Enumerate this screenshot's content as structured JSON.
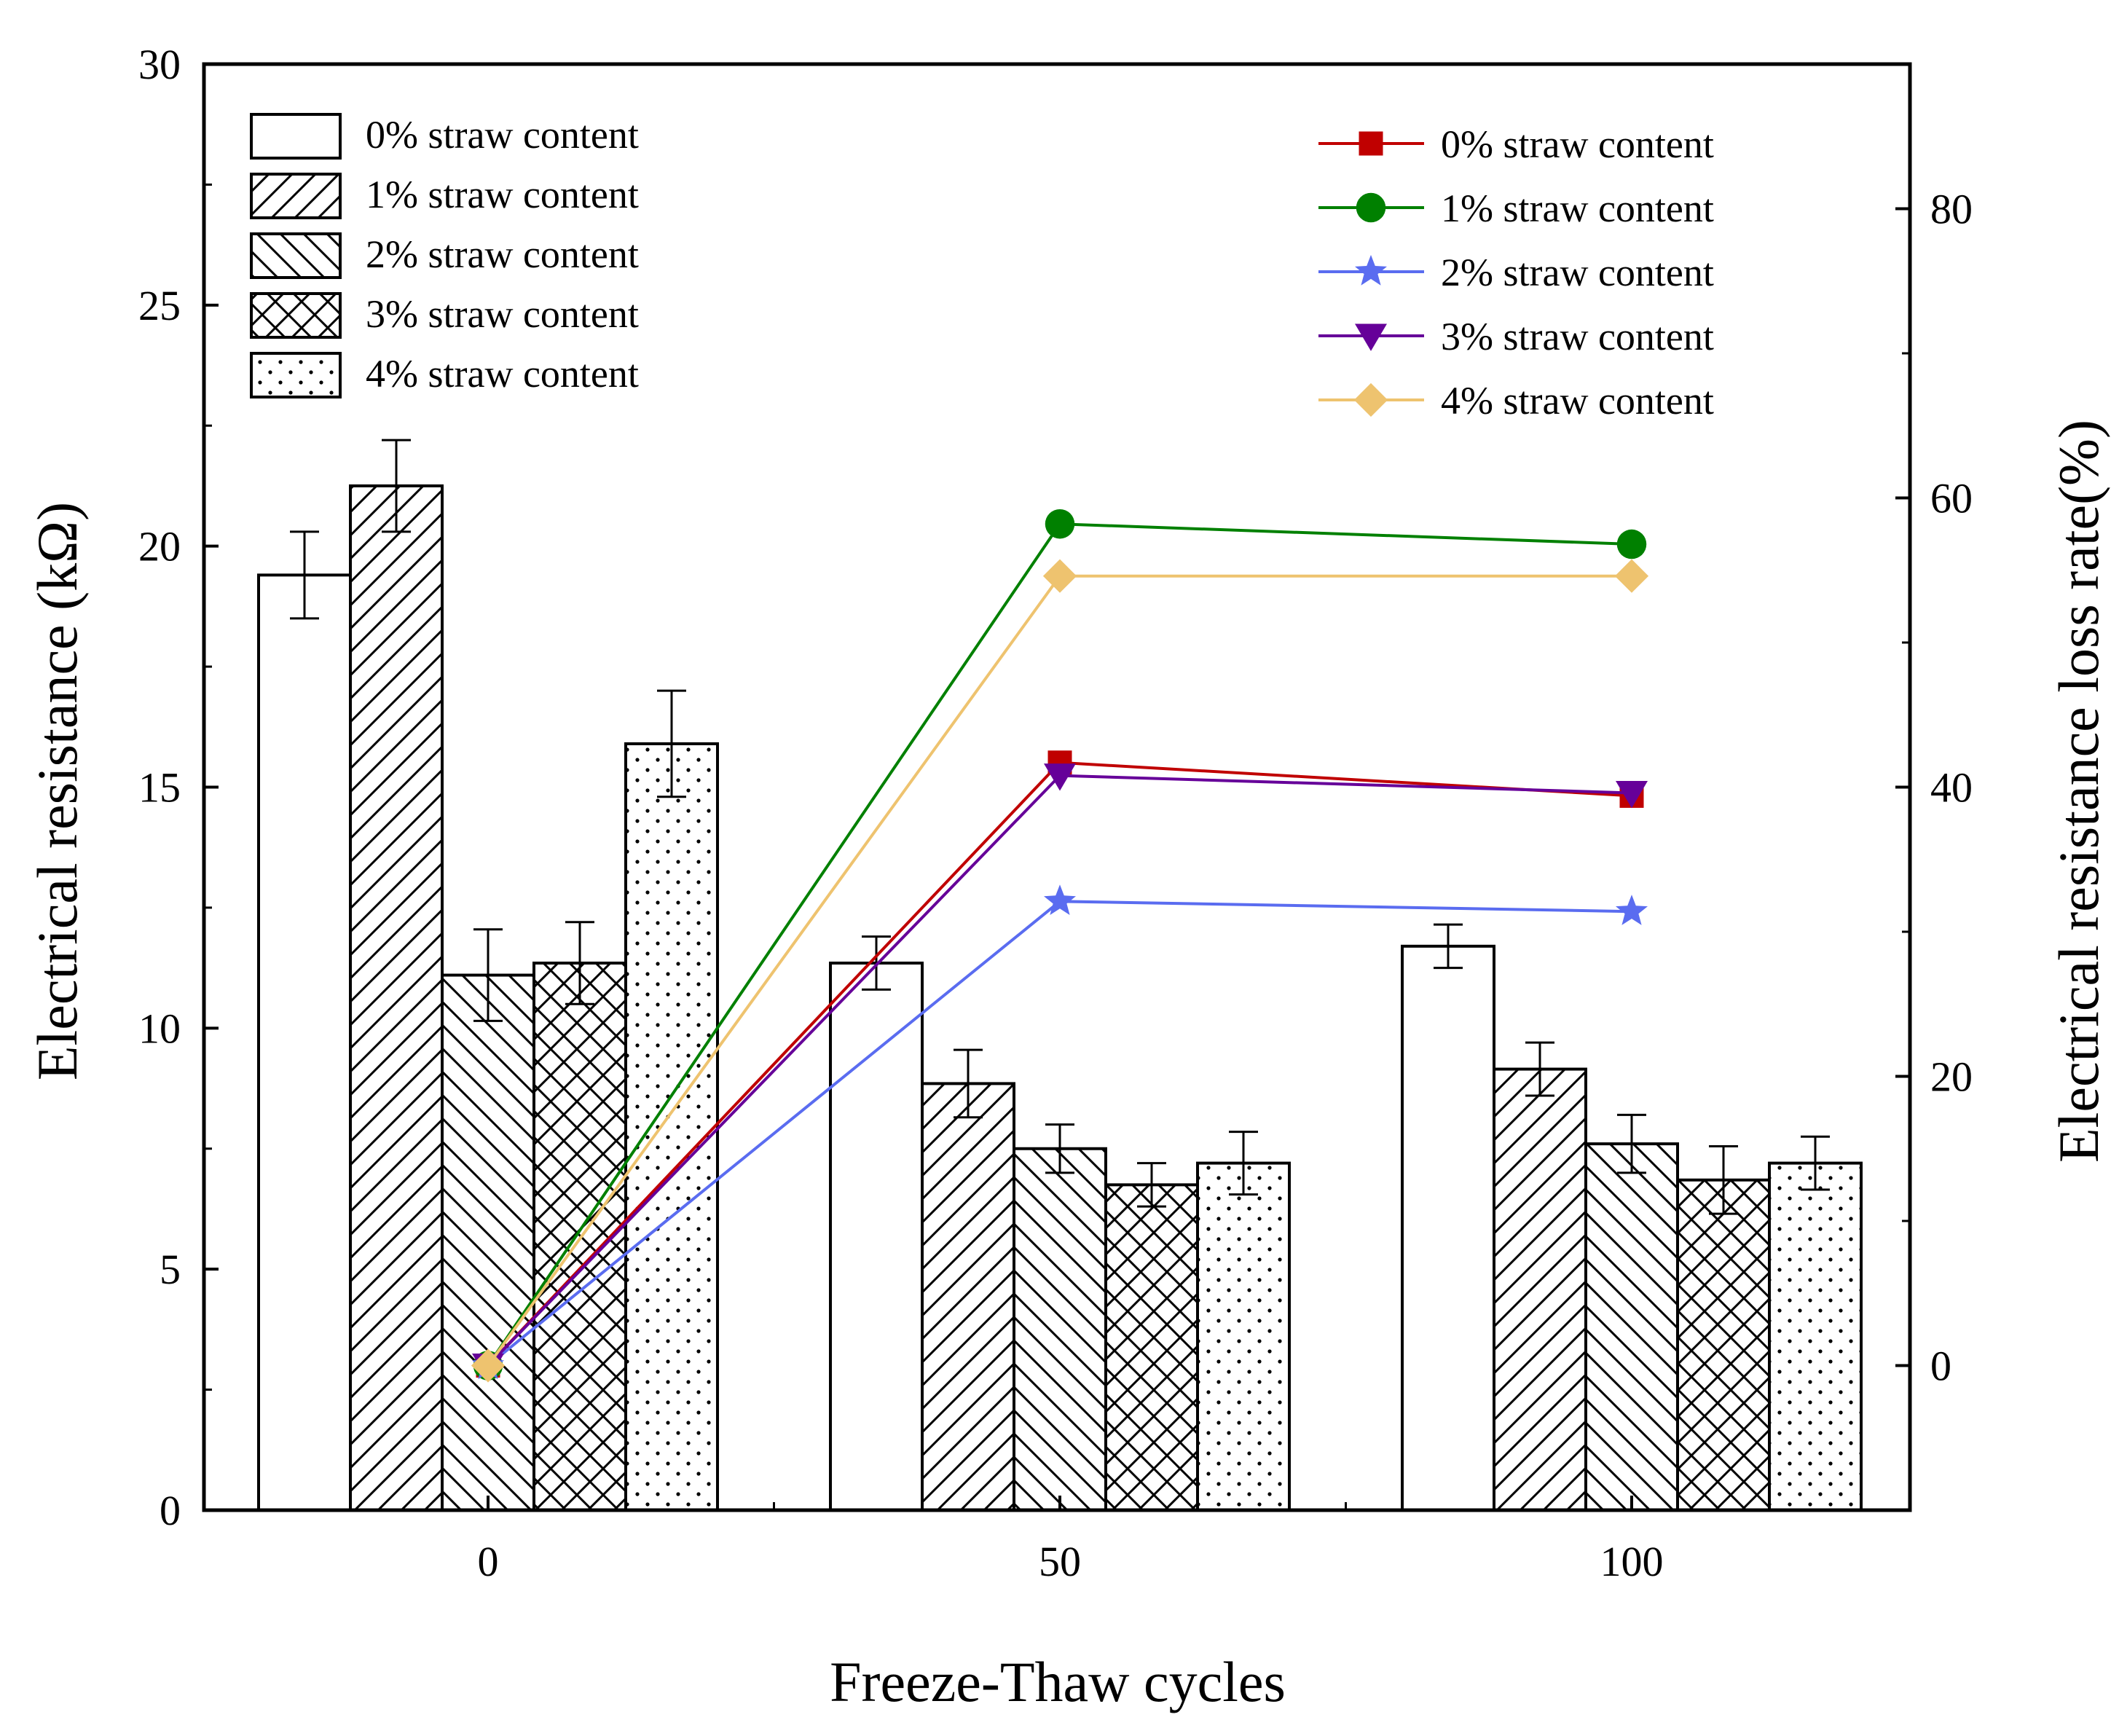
{
  "chart_data": {
    "type": "bar",
    "title": "",
    "xlabel": "Freeze-Thaw cycles",
    "ylabel": "Electrical resistance (kΩ)",
    "ylabel_right": "Electrical resistance loss rate(%)",
    "categories": [
      "0",
      "50",
      "100"
    ],
    "ylim": [
      0,
      30
    ],
    "yticks": [
      0,
      5,
      10,
      15,
      20,
      25,
      30
    ],
    "ylim_right": [
      -10,
      90
    ],
    "yticks_right": [
      0,
      20,
      40,
      60,
      80
    ],
    "bar_series": [
      {
        "name": "0% straw content",
        "pattern": "none",
        "values": [
          19.4,
          11.35,
          11.7
        ],
        "errors": [
          0.9,
          0.55,
          0.45
        ]
      },
      {
        "name": "1% straw content",
        "pattern": "diag-up",
        "values": [
          21.25,
          8.85,
          9.15
        ],
        "errors": [
          0.95,
          0.7,
          0.55
        ]
      },
      {
        "name": "2% straw content",
        "pattern": "diag-down",
        "values": [
          11.1,
          7.5,
          7.6
        ],
        "errors": [
          0.95,
          0.5,
          0.6
        ]
      },
      {
        "name": "3% straw content",
        "pattern": "cross",
        "values": [
          11.35,
          6.75,
          6.85
        ],
        "errors": [
          0.85,
          0.45,
          0.7
        ]
      },
      {
        "name": "4% straw content",
        "pattern": "dots",
        "values": [
          15.9,
          7.2,
          7.2
        ],
        "errors": [
          1.1,
          0.65,
          0.55
        ]
      }
    ],
    "line_series": [
      {
        "name": "0% straw content",
        "color": "#c00000",
        "marker": "square",
        "values": [
          0,
          41.7,
          39.4
        ]
      },
      {
        "name": "1% straw content",
        "color": "#008000",
        "marker": "circle",
        "values": [
          0,
          58.2,
          56.8
        ]
      },
      {
        "name": "2% straw content",
        "color": "#5a6cf0",
        "marker": "star",
        "values": [
          0,
          32.1,
          31.4
        ]
      },
      {
        "name": "3% straw content",
        "color": "#660099",
        "marker": "triangle-down",
        "values": [
          0,
          40.8,
          39.6
        ]
      },
      {
        "name": "4% straw content",
        "color": "#eec36f",
        "marker": "diamond",
        "values": [
          0,
          54.6,
          54.6
        ]
      }
    ],
    "legend_bars_position": "top-left",
    "legend_lines_position": "top-right"
  }
}
